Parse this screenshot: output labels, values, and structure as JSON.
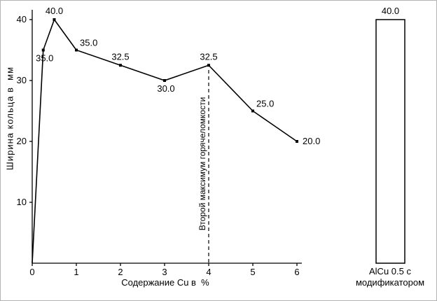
{
  "figure": {
    "background": "#ffffff",
    "ink_color": "#000000"
  },
  "chart_data": [
    {
      "type": "line",
      "title": "",
      "xlabel": "Содержание Cu в  %",
      "ylabel": "Ширина кольца в  мм",
      "x": [
        0,
        0.25,
        0.5,
        1,
        2,
        3,
        4,
        5,
        6
      ],
      "y": [
        0,
        35.0,
        40.0,
        35.0,
        32.5,
        30.0,
        32.5,
        25.0,
        20.0
      ],
      "point_labels": [
        "",
        "35.0",
        "40.0",
        "35.0",
        "32.5",
        "30.0",
        "32.5",
        "25.0",
        "20.0"
      ],
      "label_placement": [
        "",
        "below",
        "above",
        "right-up",
        "above",
        "below",
        "above",
        "right-up",
        "right"
      ],
      "xticks": [
        "0",
        "1",
        "2",
        "3",
        "4",
        "5",
        "6"
      ],
      "yticks": [
        "10",
        "20",
        "30",
        "40"
      ],
      "xlim": [
        0,
        6.1
      ],
      "ylim": [
        0,
        41.5
      ],
      "grid": false,
      "legend": "none",
      "annotation": {
        "text": "Второй максимум горячеломкости",
        "x": 4,
        "line_style": "dashed-vertical"
      }
    },
    {
      "type": "bar",
      "categories": [
        "AlCu 0.5 с модификатором"
      ],
      "category_lines": [
        "AlCu 0.5 с",
        "модификатором"
      ],
      "values": [
        40.0
      ],
      "value_labels": [
        "40.0"
      ],
      "bar_fill": "#ffffff",
      "bar_stroke": "#000000"
    }
  ]
}
